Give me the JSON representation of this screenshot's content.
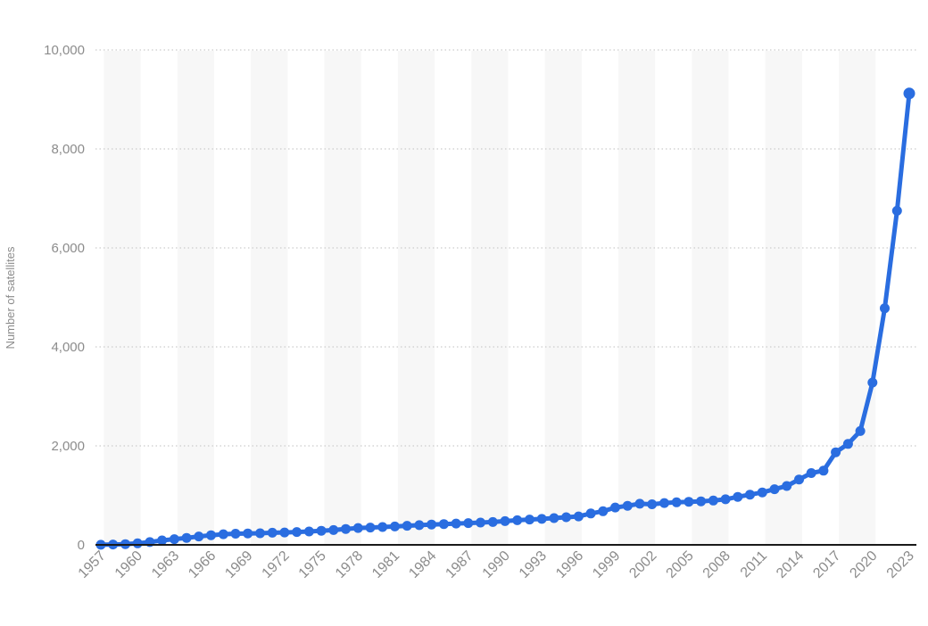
{
  "page": {
    "background_color": "#ffffff"
  },
  "style": {
    "line_color": "#2a6de0",
    "marker_color": "#2a6de0",
    "band_color": "#f7f7f7",
    "grid_color": "#cccccc",
    "axis_line_color": "#1a1a1a",
    "tick_text_color": "#8c8c8c"
  },
  "chart_data": {
    "type": "line",
    "title": "",
    "xlabel": "",
    "ylabel": "Number of satellites",
    "legend": "none",
    "grid": "dotted-horizontal",
    "background_bands": "alternating 3-year vertical stripes",
    "ylim": [
      0,
      10000
    ],
    "yticks": [
      0,
      2000,
      4000,
      6000,
      8000,
      10000
    ],
    "ytick_labels": [
      "0",
      "2,000",
      "4,000",
      "6,000",
      "8,000",
      "10,000"
    ],
    "xtick_years": [
      1957,
      1960,
      1963,
      1966,
      1969,
      1972,
      1975,
      1978,
      1981,
      1984,
      1987,
      1990,
      1993,
      1996,
      1999,
      2002,
      2005,
      2008,
      2011,
      2014,
      2017,
      2020,
      2023
    ],
    "x": [
      1957,
      1958,
      1959,
      1960,
      1961,
      1962,
      1963,
      1964,
      1965,
      1966,
      1967,
      1968,
      1969,
      1970,
      1971,
      1972,
      1973,
      1974,
      1975,
      1976,
      1977,
      1978,
      1979,
      1980,
      1981,
      1982,
      1983,
      1984,
      1985,
      1986,
      1987,
      1988,
      1989,
      1990,
      1991,
      1992,
      1993,
      1994,
      1995,
      1996,
      1997,
      1998,
      1999,
      2000,
      2001,
      2002,
      2003,
      2004,
      2005,
      2006,
      2007,
      2008,
      2009,
      2010,
      2011,
      2012,
      2013,
      2014,
      2015,
      2016,
      2017,
      2018,
      2019,
      2020,
      2021,
      2022,
      2023
    ],
    "values": [
      2,
      8,
      15,
      30,
      55,
      90,
      115,
      140,
      170,
      195,
      215,
      225,
      230,
      235,
      245,
      250,
      260,
      270,
      285,
      300,
      320,
      340,
      350,
      360,
      372,
      385,
      398,
      410,
      420,
      430,
      440,
      450,
      462,
      480,
      498,
      512,
      525,
      540,
      558,
      575,
      635,
      680,
      755,
      790,
      830,
      820,
      845,
      860,
      870,
      880,
      895,
      920,
      970,
      1015,
      1060,
      1125,
      1190,
      1320,
      1450,
      1500,
      1870,
      2040,
      2300,
      3280,
      4780,
      6750,
      9120
    ]
  }
}
